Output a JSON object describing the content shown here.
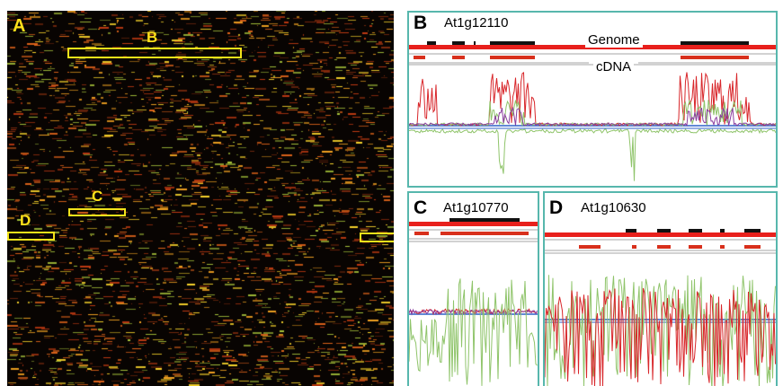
{
  "panels": {
    "A": {
      "label": "A",
      "boxes": [
        {
          "label": "B"
        },
        {
          "label": "C"
        },
        {
          "label": "D"
        }
      ]
    },
    "B": {
      "label": "B",
      "gene": "At1g12110",
      "genome_label": "Genome",
      "cdna_label": "cDNA"
    },
    "C": {
      "label": "C",
      "gene": "At1g10770"
    },
    "D": {
      "label": "D",
      "gene": "At1g10630"
    }
  },
  "colors": {
    "heatmap_bg": "#080402",
    "box": "#f2e21a",
    "border": "#57b7ad",
    "genome": "#e8201c",
    "exon": "#111111",
    "cdna": "#d8301c",
    "trace_red": "#d8262a",
    "trace_green": "#8fc46a",
    "trace_blue": "#2f62c8",
    "trace_purple": "#8a3c9e"
  }
}
